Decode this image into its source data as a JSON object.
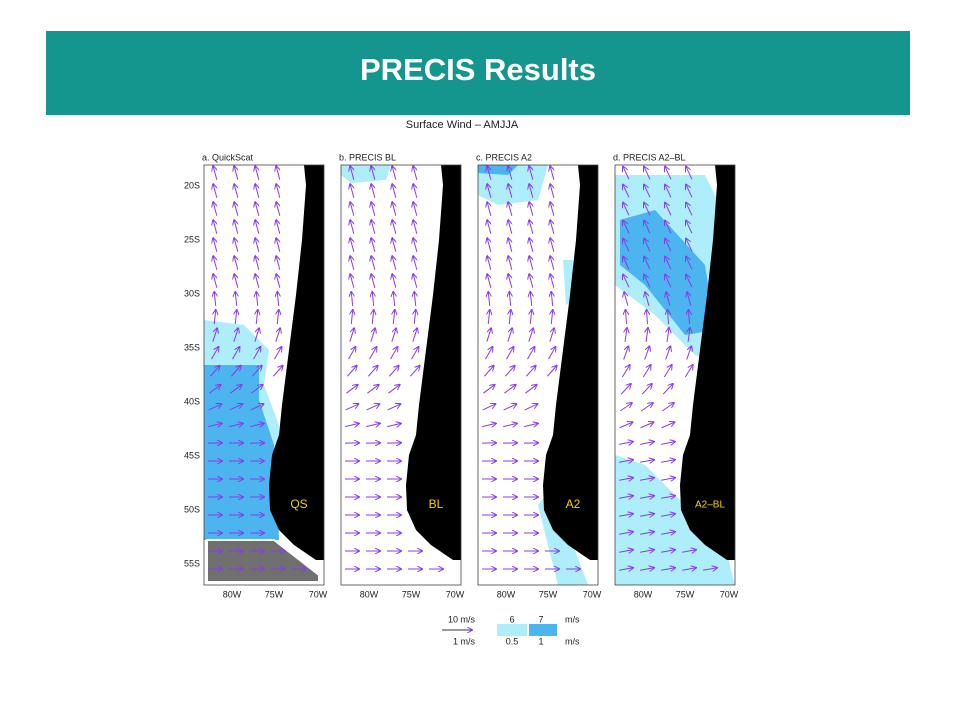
{
  "header": {
    "title": "PRECIS Results"
  },
  "figure": {
    "title": "Surface Wind – AMJJA",
    "lat_labels": [
      "20S",
      "25S",
      "30S",
      "35S",
      "40S",
      "45S",
      "50S",
      "55S"
    ],
    "lon_labels": [
      "80W",
      "75W",
      "70W"
    ],
    "panels": [
      {
        "title": "a. QuickScat",
        "tag": "QS"
      },
      {
        "title": "b. PRECIS BL",
        "tag": "BL"
      },
      {
        "title": "c. PRECIS A2",
        "tag": "A2"
      },
      {
        "title": "d. PRECIS A2–BL",
        "tag": "A2–BL"
      }
    ],
    "legend": {
      "vector_top": "10  m/s",
      "vector_bottom": "1  m/s",
      "shade_top": [
        "6",
        "7"
      ],
      "shade_top_unit": "m/s",
      "shade_bottom": [
        "0.5",
        "1"
      ],
      "shade_bottom_unit": "m/s"
    }
  }
}
